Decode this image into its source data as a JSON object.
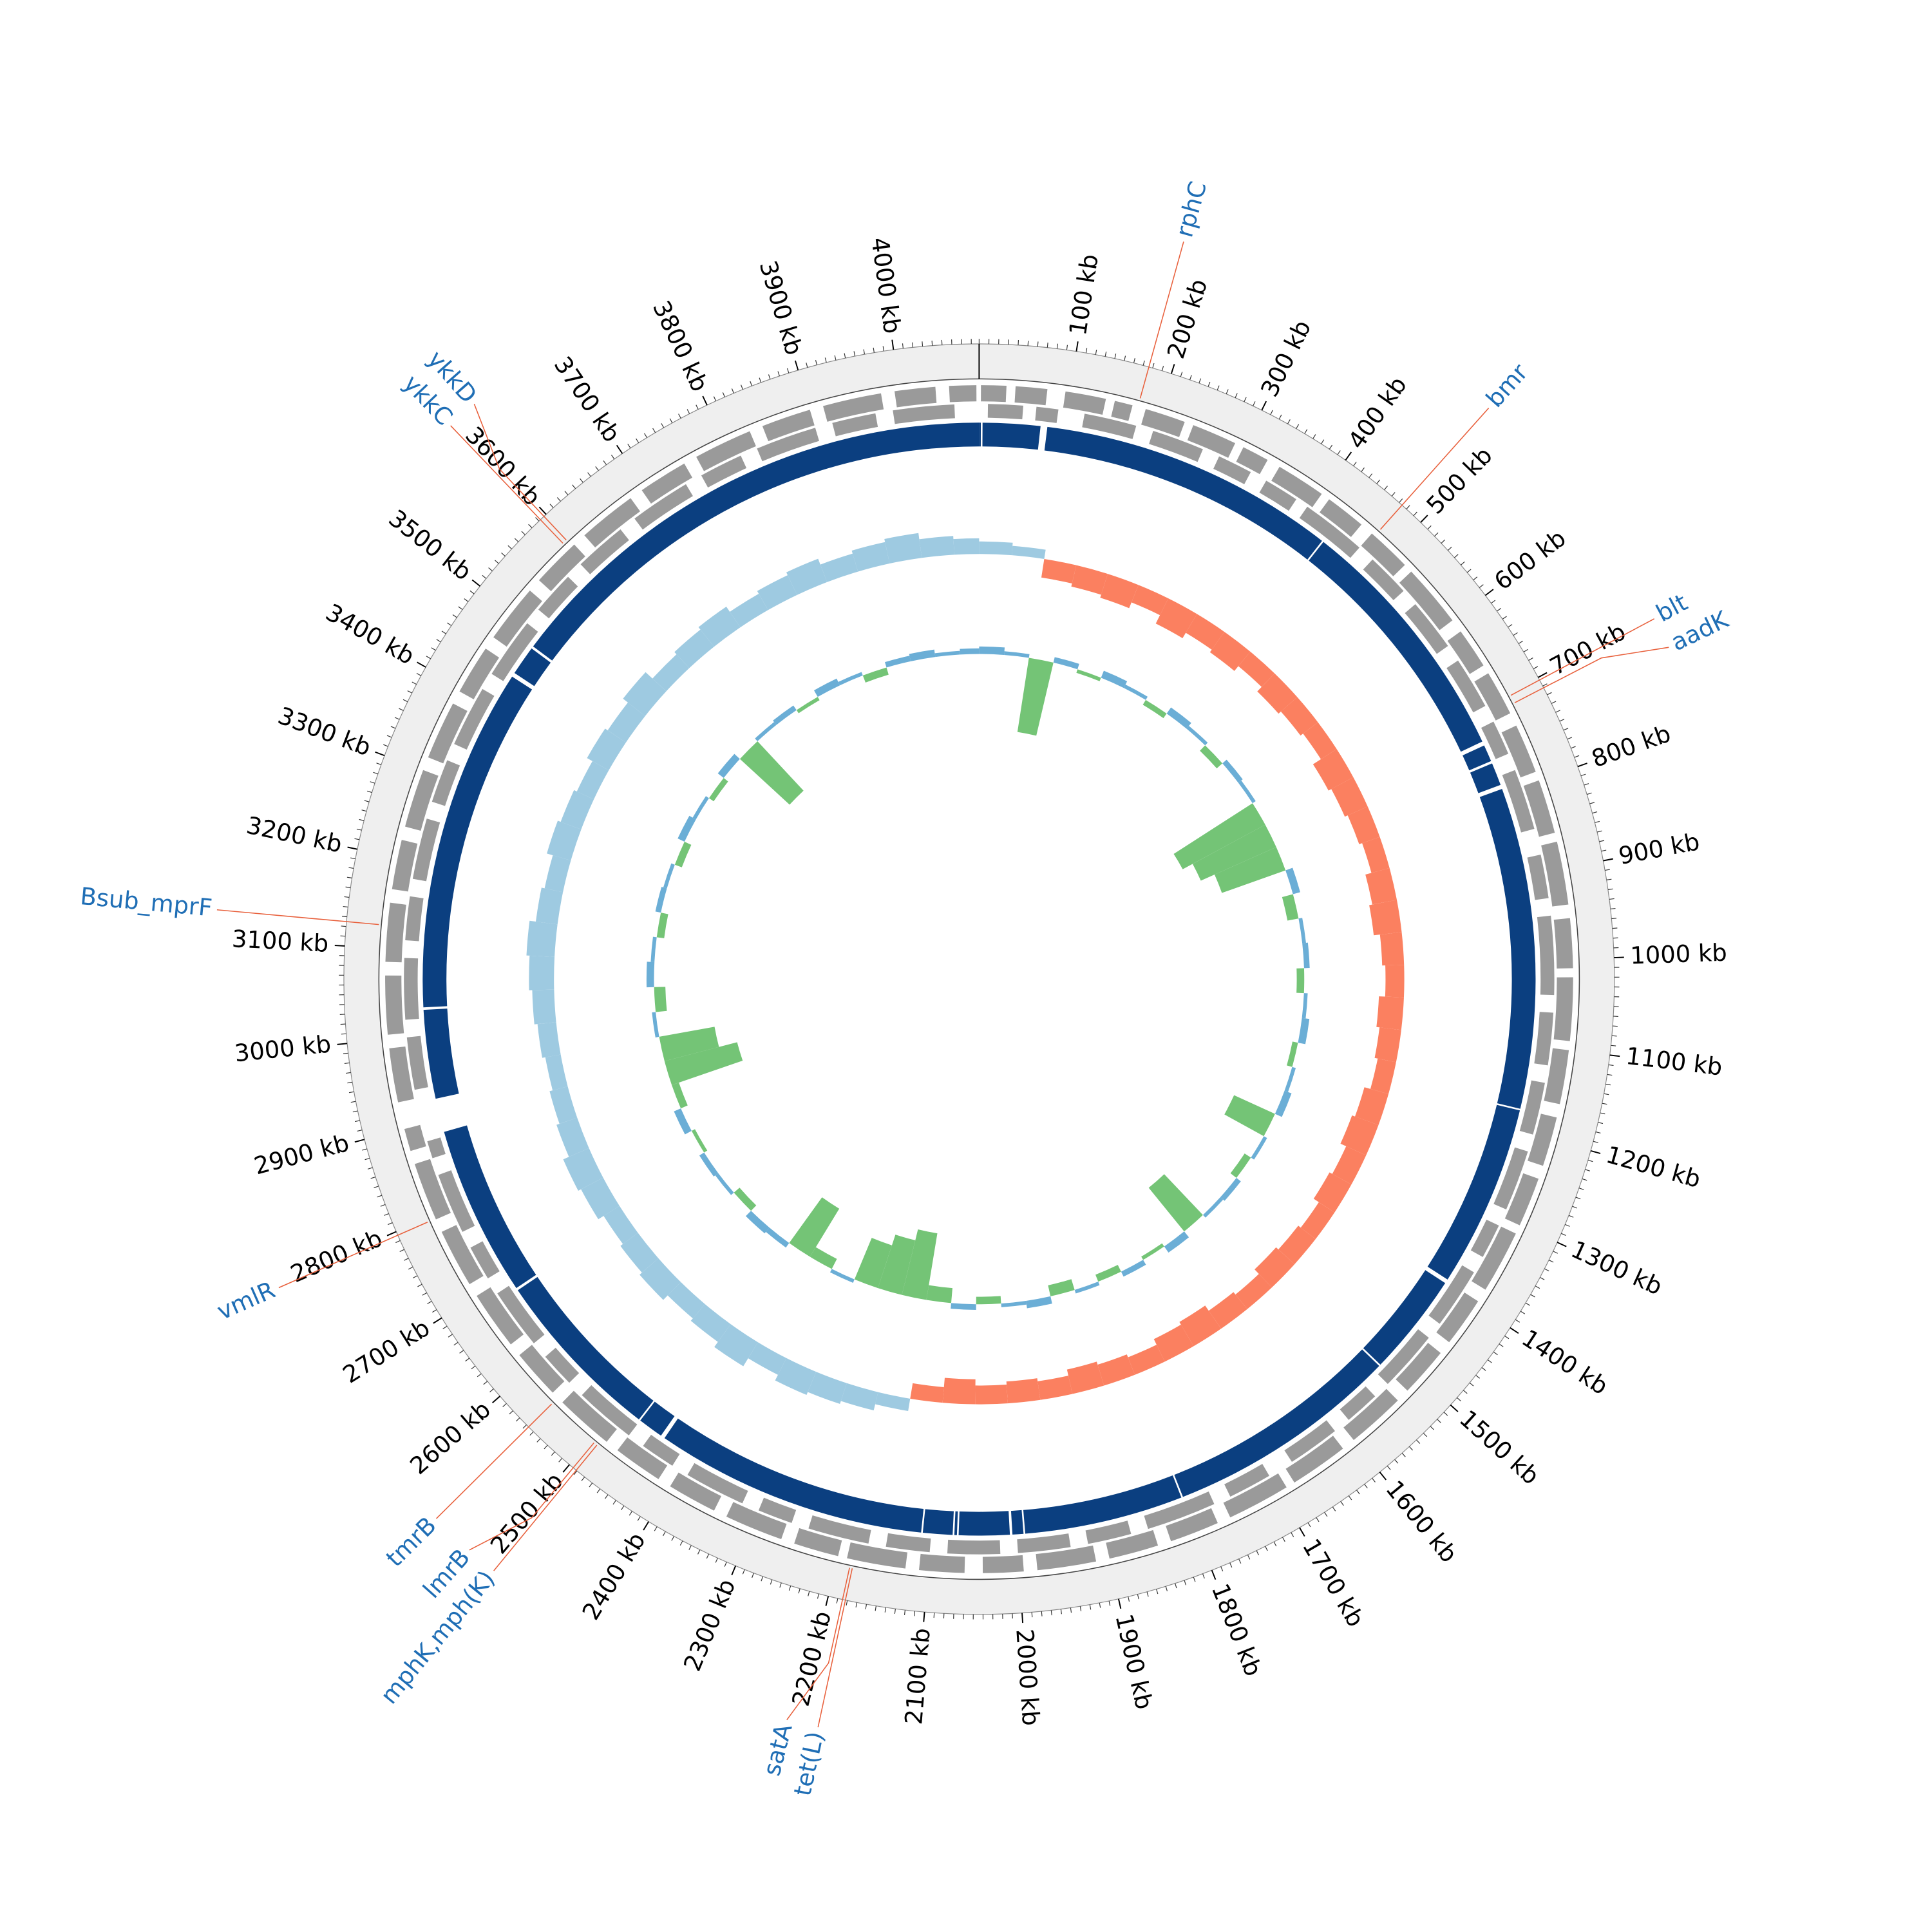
{
  "chart_data": {
    "type": "circular-genome",
    "xlim": [
      0,
      4088
    ],
    "xticks": [
      {
        "value": 100,
        "label": "100 kb"
      },
      {
        "value": 200,
        "label": "200 kb"
      },
      {
        "value": 300,
        "label": "300 kb"
      },
      {
        "value": 400,
        "label": "400 kb"
      },
      {
        "value": 500,
        "label": "500 kb"
      },
      {
        "value": 600,
        "label": "600 kb"
      },
      {
        "value": 700,
        "label": "700 kb"
      },
      {
        "value": 800,
        "label": "800 kb"
      },
      {
        "value": 900,
        "label": "900 kb"
      },
      {
        "value": 1000,
        "label": "1000 kb"
      },
      {
        "value": 1100,
        "label": "1100 kb"
      },
      {
        "value": 1200,
        "label": "1200 kb"
      },
      {
        "value": 1300,
        "label": "1300 kb"
      },
      {
        "value": 1400,
        "label": "1400 kb"
      },
      {
        "value": 1500,
        "label": "1500 kb"
      },
      {
        "value": 1600,
        "label": "1600 kb"
      },
      {
        "value": 1700,
        "label": "1700 kb"
      },
      {
        "value": 1800,
        "label": "1800 kb"
      },
      {
        "value": 1900,
        "label": "1900 kb"
      },
      {
        "value": 2000,
        "label": "2000 kb"
      },
      {
        "value": 2100,
        "label": "2100 kb"
      },
      {
        "value": 2200,
        "label": "2200 kb"
      },
      {
        "value": 2300,
        "label": "2300 kb"
      },
      {
        "value": 2400,
        "label": "2400 kb"
      },
      {
        "value": 2500,
        "label": "2500 kb"
      },
      {
        "value": 2600,
        "label": "2600 kb"
      },
      {
        "value": 2700,
        "label": "2700 kb"
      },
      {
        "value": 2800,
        "label": "2800 kb"
      },
      {
        "value": 2900,
        "label": "2900 kb"
      },
      {
        "value": 3000,
        "label": "3000 kb"
      },
      {
        "value": 3100,
        "label": "3100 kb"
      },
      {
        "value": 3200,
        "label": "3200 kb"
      },
      {
        "value": 3300,
        "label": "3300 kb"
      },
      {
        "value": 3400,
        "label": "3400 kb"
      },
      {
        "value": 3500,
        "label": "3500 kb"
      },
      {
        "value": 3600,
        "label": "3600 kb"
      },
      {
        "value": 3700,
        "label": "3700 kb"
      },
      {
        "value": 3800,
        "label": "3800 kb"
      },
      {
        "value": 3900,
        "label": "3900 kb"
      },
      {
        "value": 4000,
        "label": "4000 kb"
      }
    ],
    "minor_tick_interval": 10,
    "gene_color": "#9a9a9a",
    "genes_forward": [
      [
        2,
        30
      ],
      [
        40,
        75
      ],
      [
        95,
        140
      ],
      [
        150,
        170
      ],
      [
        185,
        230
      ],
      [
        240,
        290
      ],
      [
        300,
        330
      ],
      [
        345,
        400
      ],
      [
        410,
        455
      ],
      [
        470,
        520
      ],
      [
        530,
        600
      ],
      [
        615,
        660
      ],
      [
        670,
        720
      ],
      [
        735,
        790
      ],
      [
        800,
        860
      ],
      [
        870,
        940
      ],
      [
        955,
        1010
      ],
      [
        1020,
        1090
      ],
      [
        1100,
        1160
      ],
      [
        1175,
        1230
      ],
      [
        1245,
        1300
      ],
      [
        1310,
        1380
      ],
      [
        1395,
        1450
      ],
      [
        1465,
        1520
      ],
      [
        1535,
        1600
      ],
      [
        1615,
        1680
      ],
      [
        1690,
        1760
      ],
      [
        1775,
        1830
      ],
      [
        1845,
        1900
      ],
      [
        1915,
        1980
      ],
      [
        1995,
        2040
      ],
      [
        2060,
        2110
      ],
      [
        2125,
        2190
      ],
      [
        2200,
        2250
      ],
      [
        2265,
        2330
      ],
      [
        2345,
        2400
      ],
      [
        2415,
        2470
      ],
      [
        2485,
        2550
      ],
      [
        2565,
        2620
      ],
      [
        2635,
        2700
      ],
      [
        2715,
        2780
      ],
      [
        2795,
        2860
      ],
      [
        2875,
        2900
      ],
      [
        2930,
        2990
      ],
      [
        3005,
        3070
      ],
      [
        3085,
        3150
      ],
      [
        3165,
        3220
      ],
      [
        3235,
        3300
      ],
      [
        3315,
        3380
      ],
      [
        3395,
        3450
      ],
      [
        3465,
        3530
      ],
      [
        3545,
        3600
      ],
      [
        3615,
        3680
      ],
      [
        3695,
        3750
      ],
      [
        3765,
        3830
      ],
      [
        3845,
        3900
      ],
      [
        3915,
        3980
      ],
      [
        3995,
        4040
      ],
      [
        4055,
        4085
      ]
    ],
    "genes_reverse": [
      [
        10,
        50
      ],
      [
        65,
        90
      ],
      [
        120,
        180
      ],
      [
        200,
        260
      ],
      [
        280,
        320
      ],
      [
        340,
        380
      ],
      [
        395,
        470
      ],
      [
        490,
        540
      ],
      [
        560,
        620
      ],
      [
        640,
        700
      ],
      [
        720,
        760
      ],
      [
        780,
        850
      ],
      [
        880,
        930
      ],
      [
        950,
        1040
      ],
      [
        1060,
        1120
      ],
      [
        1140,
        1200
      ],
      [
        1220,
        1290
      ],
      [
        1310,
        1350
      ],
      [
        1370,
        1440
      ],
      [
        1460,
        1530
      ],
      [
        1550,
        1590
      ],
      [
        1610,
        1670
      ],
      [
        1700,
        1750
      ],
      [
        1770,
        1850
      ],
      [
        1870,
        1920
      ],
      [
        1940,
        2000
      ],
      [
        2020,
        2080
      ],
      [
        2100,
        2150
      ],
      [
        2170,
        2240
      ],
      [
        2260,
        2300
      ],
      [
        2320,
        2390
      ],
      [
        2410,
        2450
      ],
      [
        2470,
        2540
      ],
      [
        2560,
        2600
      ],
      [
        2620,
        2690
      ],
      [
        2710,
        2750
      ],
      [
        2770,
        2840
      ],
      [
        2860,
        2880
      ],
      [
        2940,
        3000
      ],
      [
        3020,
        3090
      ],
      [
        3110,
        3160
      ],
      [
        3180,
        3250
      ],
      [
        3270,
        3320
      ],
      [
        3340,
        3410
      ],
      [
        3430,
        3500
      ],
      [
        3520,
        3570
      ],
      [
        3590,
        3650
      ],
      [
        3670,
        3740
      ],
      [
        3760,
        3810
      ],
      [
        3830,
        3900
      ],
      [
        3920,
        3970
      ],
      [
        3990,
        4060
      ]
    ],
    "contig_color": "#0b3f80",
    "contigs": [
      [
        0,
        2
      ],
      [
        4,
        72
      ],
      [
        80,
        432
      ],
      [
        434,
        735
      ],
      [
        740,
        760
      ],
      [
        763,
        790
      ],
      [
        795,
        1175
      ],
      [
        1177,
        1393
      ],
      [
        1398,
        1520
      ],
      [
        1522,
        1800
      ],
      [
        1802,
        1990
      ],
      [
        1992,
        2005
      ],
      [
        2008,
        2068
      ],
      [
        2070,
        2073
      ],
      [
        2075,
        2110
      ],
      [
        2112,
        2435
      ],
      [
        2440,
        2470
      ],
      [
        2472,
        2680
      ],
      [
        2683,
        2885
      ],
      [
        2925,
        3030
      ],
      [
        3033,
        3440
      ],
      [
        3445,
        3480
      ],
      [
        3483,
        4088
      ]
    ],
    "x": [
      0,
      50,
      100,
      150,
      200,
      250,
      300,
      350,
      400,
      450,
      500,
      550,
      600,
      650,
      700,
      750,
      800,
      850,
      900,
      950,
      1000,
      1050,
      1100,
      1150,
      1200,
      1250,
      1300,
      1350,
      1400,
      1450,
      1500,
      1550,
      1600,
      1650,
      1700,
      1750,
      1800,
      1850,
      1900,
      1950,
      2000,
      2050,
      2100,
      2150,
      2200,
      2250,
      2300,
      2350,
      2400,
      2450,
      2500,
      2550,
      2600,
      2650,
      2700,
      2750,
      2800,
      2850,
      2900,
      2950,
      3000,
      3050,
      3100,
      3150,
      3200,
      3250,
      3300,
      3350,
      3400,
      3450,
      3500,
      3550,
      3600,
      3650,
      3700,
      3750,
      3800,
      3850,
      3900,
      3950,
      4000,
      4050
    ],
    "tracks": [
      {
        "ylim": [
          -0.08,
          0.08
        ],
        "colors": [
          "#9ecae1",
          "#fb8060"
        ],
        "values": [
          0.02,
          0.015,
          -0.03,
          -0.035,
          -0.04,
          -0.03,
          -0.045,
          -0.035,
          -0.04,
          -0.03,
          -0.04,
          -0.035,
          -0.03,
          -0.045,
          -0.04,
          -0.035,
          -0.03,
          -0.04,
          -0.045,
          -0.035,
          -0.03,
          -0.04,
          -0.035,
          -0.03,
          -0.04,
          -0.045,
          -0.035,
          -0.04,
          -0.03,
          -0.035,
          -0.04,
          -0.03,
          -0.035,
          -0.045,
          -0.04,
          -0.03,
          -0.035,
          -0.04,
          -0.03,
          -0.035,
          -0.03,
          -0.04,
          -0.025,
          0.02,
          0.03,
          0.035,
          0.04,
          0.03,
          0.045,
          0.035,
          0.03,
          0.04,
          0.035,
          0.03,
          0.04,
          0.045,
          0.035,
          0.03,
          0.025,
          0.03,
          0.035,
          0.04,
          0.045,
          0.035,
          0.03,
          0.04,
          0.035,
          0.03,
          0.04,
          0.035,
          0.045,
          0.03,
          0.035,
          0.04,
          0.03,
          0.035,
          0.04,
          0.03,
          0.035,
          0.04,
          0.03,
          0.025
        ]
      },
      {
        "ylim": [
          -0.3,
          0.1
        ],
        "colors": [
          "#6baed6",
          "#74c476"
        ],
        "values": [
          0.02,
          0.01,
          -0.2,
          0.015,
          -0.01,
          0.02,
          0.01,
          -0.015,
          0.02,
          0.01,
          -0.02,
          0.015,
          0.01,
          -0.25,
          -0.22,
          -0.18,
          0.02,
          -0.03,
          0.01,
          0.015,
          -0.02,
          0.01,
          0.02,
          -0.015,
          0.01,
          0.02,
          -0.12,
          0.01,
          -0.02,
          0.015,
          0.01,
          -0.15,
          0.02,
          -0.01,
          0.015,
          -0.02,
          0.01,
          -0.03,
          0.02,
          0.01,
          -0.02,
          0.015,
          -0.04,
          -0.18,
          -0.15,
          -0.12,
          0.01,
          -0.03,
          -0.15,
          0.015,
          0.02,
          -0.02,
          0.01,
          0.015,
          -0.01,
          0.02,
          -0.02,
          -0.2,
          -0.15,
          0.01,
          -0.03,
          0.02,
          0.01,
          -0.02,
          0.015,
          0.01,
          -0.02,
          0.02,
          0.01,
          -0.015,
          0.02,
          -0.18,
          0.01,
          0.015,
          -0.01,
          0.02,
          0.01,
          -0.02,
          0.015,
          0.02,
          0.01,
          0.015
        ]
      }
    ],
    "annotation_line_color": "#e8603c",
    "annotation_label_color": "#1f6eb5",
    "annotations": [
      {
        "label": "rphC",
        "position": 176
      },
      {
        "label": "bmr",
        "position": 474
      },
      {
        "label": "blt",
        "position": 703
      },
      {
        "label": "aadK",
        "position": 712
      },
      {
        "label": "tet(L)",
        "position": 2182
      },
      {
        "label": "satA",
        "position": 2185
      },
      {
        "label": "mphK,mph(K)",
        "position": 2491
      },
      {
        "label": "lmrB",
        "position": 2495
      },
      {
        "label": "tmrB",
        "position": 2557
      },
      {
        "label": "vmlR",
        "position": 2796
      },
      {
        "label": "Bsub_mprF",
        "position": 3125
      },
      {
        "label": "ykkC",
        "position": 3592
      },
      {
        "label": "ykkD",
        "position": 3597
      }
    ]
  }
}
